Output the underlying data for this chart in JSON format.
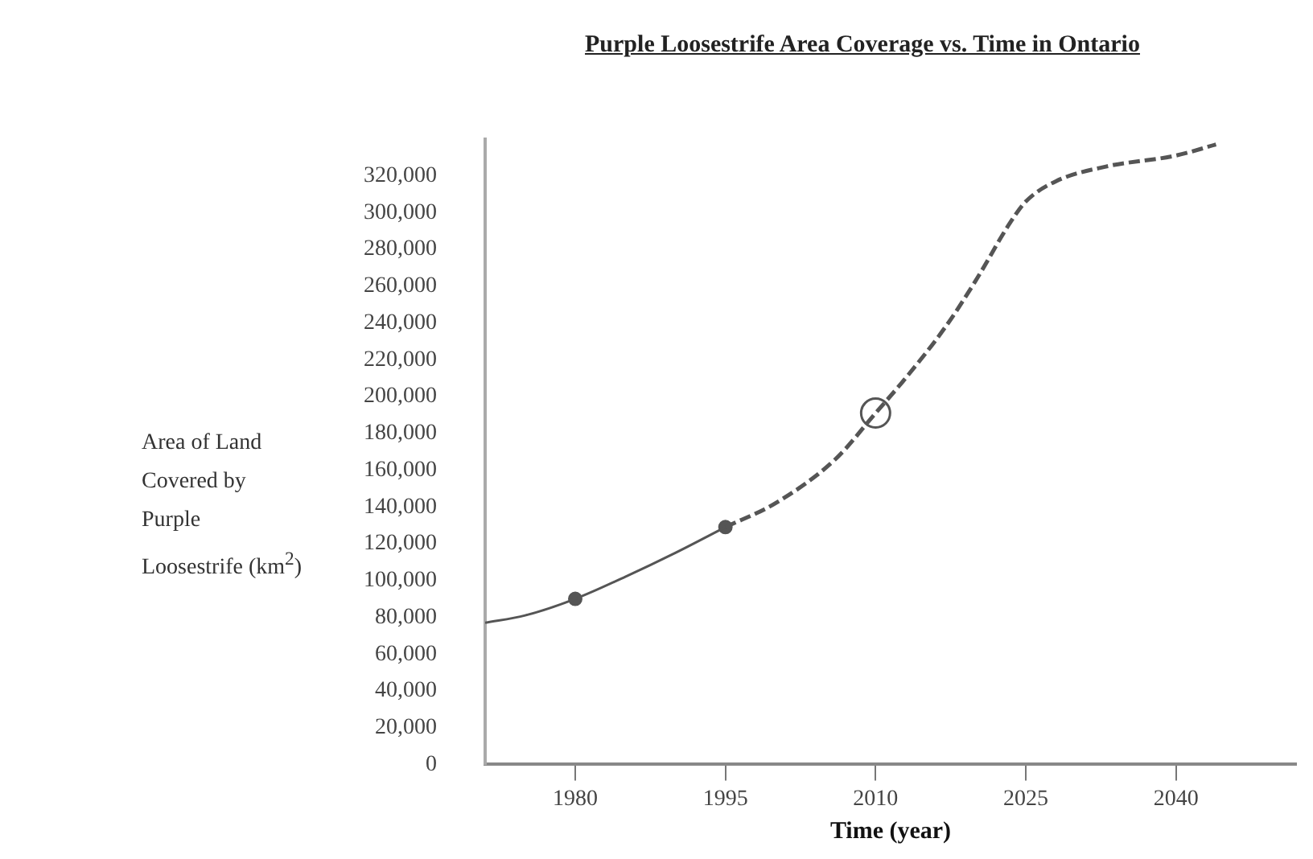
{
  "chart_data": {
    "type": "line",
    "title": "Purple Loosestrife Area Coverage vs. Time in Ontario",
    "xlabel": "Time (year)",
    "ylabel": "Area of Land Covered by Purple Loosestrife (km$^{2}$)",
    "xlim": [
      1971,
      2052
    ],
    "xticks": [
      1980,
      1995,
      2010,
      2025,
      2040
    ],
    "ylim": [
      0,
      340000
    ],
    "yticks": [
      {
        "value": 0,
        "label": "0"
      },
      {
        "value": 20000,
        "label": "20,000"
      },
      {
        "value": 40000,
        "label": "40,000"
      },
      {
        "value": 60000,
        "label": "60,000"
      },
      {
        "value": 80000,
        "label": "80,000"
      },
      {
        "value": 100000,
        "label": "100,000"
      },
      {
        "value": 120000,
        "label": "120,000"
      },
      {
        "value": 140000,
        "label": "140,000"
      },
      {
        "value": 160000,
        "label": "160,000"
      },
      {
        "value": 180000,
        "label": "180,000"
      },
      {
        "value": 200000,
        "label": "200,000"
      },
      {
        "value": 220000,
        "label": "220,000"
      },
      {
        "value": 240000,
        "label": "240,000"
      },
      {
        "value": 260000,
        "label": "260,000"
      },
      {
        "value": 280000,
        "label": "280,000"
      },
      {
        "value": 300000,
        "label": "300,000"
      },
      {
        "value": 320000,
        "label": "320,000"
      }
    ],
    "grid": false,
    "legend": false,
    "series": [
      {
        "color": "#555555",
        "line_style": "solid",
        "marker": "none",
        "x": [
          1971,
          1975,
          1980,
          1985,
          1990,
          1995
        ],
        "values": [
          77000,
          81000,
          90000,
          102000,
          115000,
          129000
        ]
      },
      {
        "color": "#555555",
        "line_style": "dashed",
        "marker": "none",
        "x": [
          1995,
          2000,
          2006,
          2010,
          2013,
          2017,
          2020,
          2023.5,
          2025,
          2028,
          2033,
          2040,
          2044
        ],
        "values": [
          129000,
          142000,
          166000,
          191000,
          210000,
          238000,
          263000,
          295000,
          306000,
          317000,
          325000,
          331000,
          337000
        ]
      },
      {
        "type": "scatter",
        "color": "#555555",
        "marker": "circle",
        "x": [
          1980,
          1995
        ],
        "values": [
          90000,
          129000
        ]
      },
      {
        "type": "scatter",
        "color": "#555555",
        "marker": "circle",
        "x": [
          2010
        ],
        "values": [
          191000
        ]
      }
    ]
  }
}
